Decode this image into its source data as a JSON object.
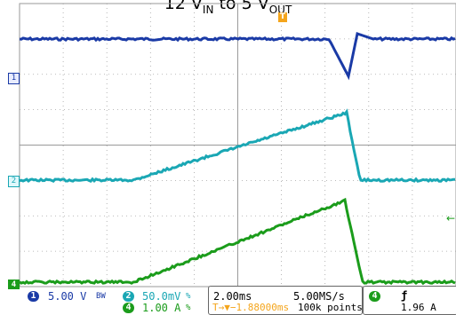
{
  "title": {
    "main": "12 V",
    "sub_in": "IN",
    "mid": " to 5 V",
    "sub_out": "OUT"
  },
  "markers": {
    "ch1": "1",
    "ch2": "2",
    "ch4": "4",
    "trigger": "T",
    "trigger_level": "←"
  },
  "channels": {
    "ch1": {
      "number": "1",
      "scale": "5.00 V",
      "coupling": "BW",
      "color": "#1a3aa6"
    },
    "ch2": {
      "number": "2",
      "scale": "50.0mV",
      "coupling": "%",
      "color": "#1aa7b4"
    },
    "ch4": {
      "number": "4",
      "scale": "1.00 A",
      "coupling": "%",
      "color": "#1b9c1b"
    }
  },
  "timebase": {
    "time_div": "2.00ms",
    "sample_rate": "5.00MS/s",
    "trigger_position": "T→▼−1.88000ms",
    "record_length": "100k points"
  },
  "trigger": {
    "source": "4",
    "slope": "ƒ",
    "level": "1.96 A"
  },
  "colors": {
    "grid": "#9a9a9a",
    "ch1": "#1a3aa6",
    "ch2": "#1aa7b4",
    "ch4": "#1b9c1b",
    "trigger": "#f4a51c"
  }
}
